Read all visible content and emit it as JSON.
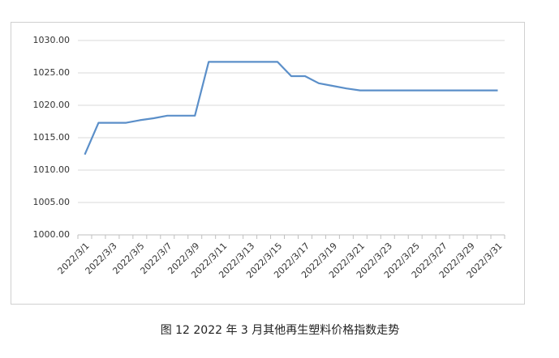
{
  "chart_data": {
    "type": "line",
    "caption": "图 12  2022 年 3 月其他再生塑料价格指数走势",
    "categories": [
      "2022/3/1",
      null,
      "2022/3/3",
      null,
      "2022/3/5",
      null,
      "2022/3/7",
      null,
      "2022/3/9",
      null,
      "2022/3/11",
      null,
      "2022/3/13",
      null,
      "2022/3/15",
      null,
      "2022/3/17",
      null,
      "2022/3/19",
      null,
      "2022/3/21",
      null,
      "2022/3/23",
      null,
      "2022/3/25",
      null,
      "2022/3/27",
      null,
      "2022/3/29",
      null,
      "2022/3/31"
    ],
    "values": [
      1012.4,
      1017.3,
      1017.3,
      1017.3,
      1017.7,
      1018.0,
      1018.4,
      1018.4,
      1018.4,
      1026.7,
      1026.7,
      1026.7,
      1026.7,
      1026.7,
      1026.7,
      1024.5,
      1024.5,
      1023.4,
      1023.0,
      1022.6,
      1022.3,
      1022.3,
      1022.3,
      1022.3,
      1022.3,
      1022.3,
      1022.3,
      1022.3,
      1022.3,
      1022.3,
      1022.3
    ],
    "color": "#5b8fc9",
    "ylim": [
      1000,
      1030
    ],
    "yticks": [
      {
        "value": 1000,
        "label": "1000.00"
      },
      {
        "value": 1005,
        "label": "1005.00"
      },
      {
        "value": 1010,
        "label": "1010.00"
      },
      {
        "value": 1015,
        "label": "1015.00"
      },
      {
        "value": 1020,
        "label": "1020.00"
      },
      {
        "value": 1025,
        "label": "1025.00"
      },
      {
        "value": 1030,
        "label": "1030.00"
      }
    ],
    "grid": true
  }
}
